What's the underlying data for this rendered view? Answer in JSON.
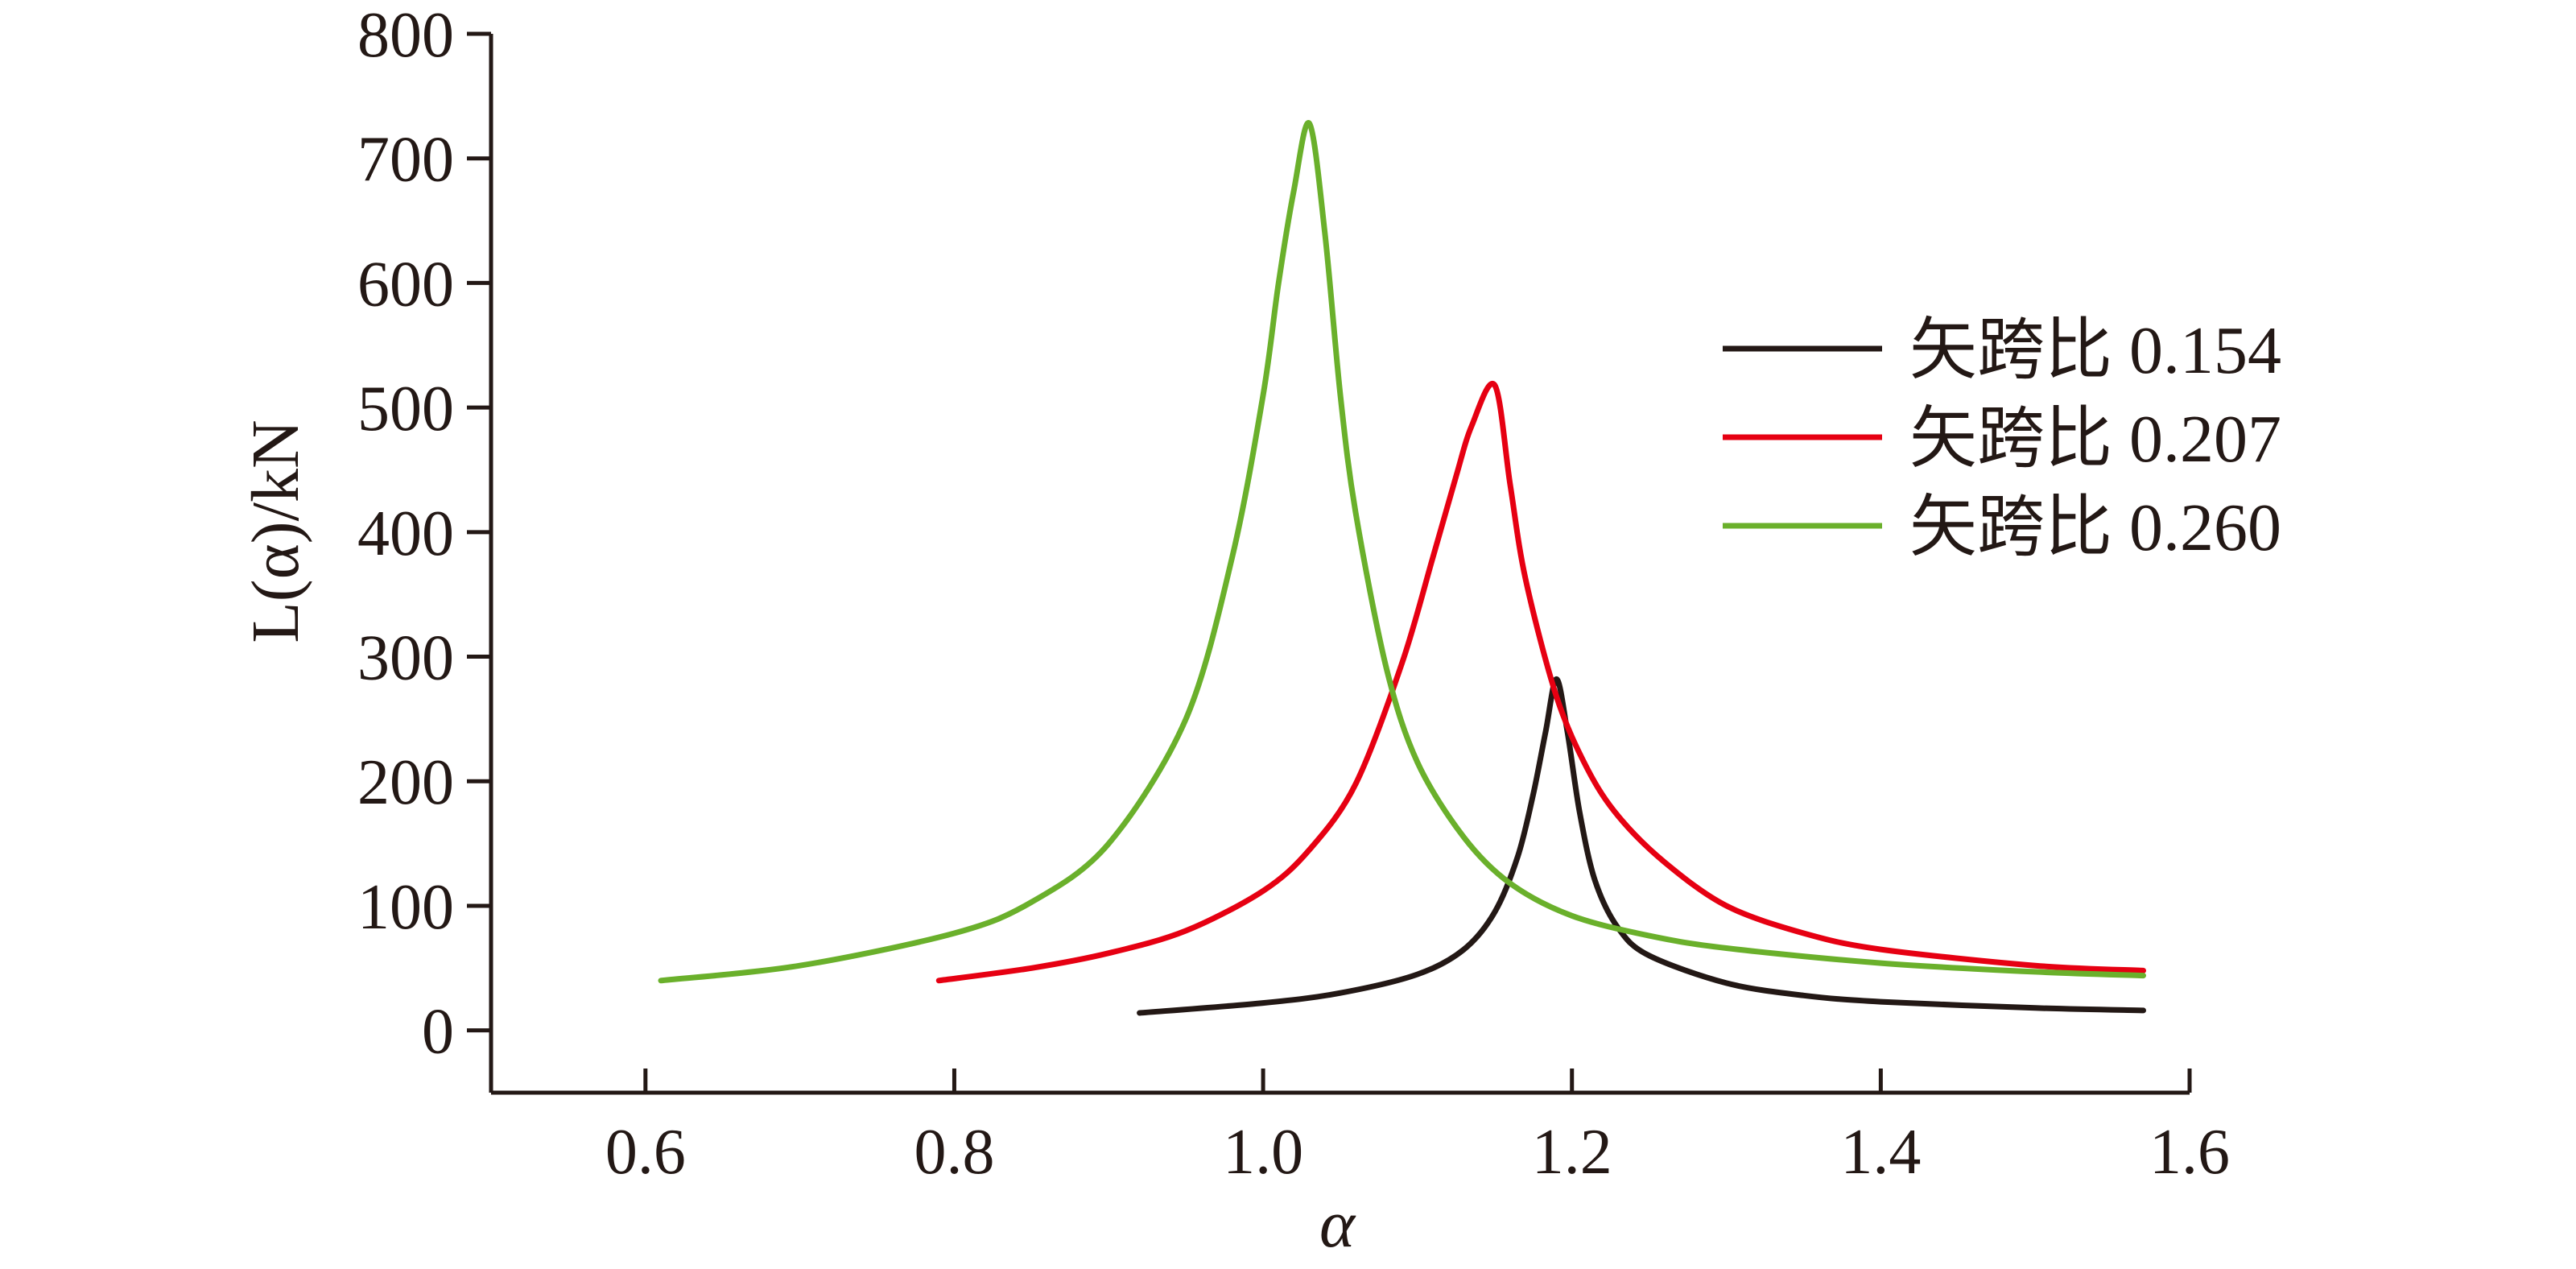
{
  "chart_data": {
    "type": "line",
    "title": "",
    "xlabel": "α",
    "ylabel": "L(α)/kN",
    "xlim": [
      0.5,
      1.6
    ],
    "ylim": [
      -50,
      800
    ],
    "xticks": [
      0.6,
      0.8,
      1.0,
      1.2,
      1.4,
      1.6
    ],
    "xtick_labels": [
      "0.6",
      "0.8",
      "1.0",
      "1.2",
      "1.4",
      "1.6"
    ],
    "yticks": [
      0,
      100,
      200,
      300,
      400,
      500,
      600,
      700,
      800
    ],
    "ytick_labels": [
      "0",
      "100",
      "200",
      "300",
      "400",
      "500",
      "600",
      "700",
      "800"
    ],
    "grid": false,
    "legend_position": "right",
    "series": [
      {
        "name": "矢跨比 0.154",
        "color": "#231815",
        "x": [
          0.92,
          1.0,
          1.05,
          1.1,
          1.13,
          1.15,
          1.165,
          1.175,
          1.183,
          1.19,
          1.197,
          1.205,
          1.215,
          1.23,
          1.25,
          1.3,
          1.35,
          1.4,
          1.5,
          1.57
        ],
        "y": [
          14,
          22,
          30,
          45,
          65,
          95,
          140,
          190,
          240,
          282,
          240,
          175,
          120,
          82,
          60,
          38,
          28,
          23,
          18,
          16
        ]
      },
      {
        "name": "矢跨比 0.207",
        "color": "#e60012",
        "x": [
          0.79,
          0.85,
          0.9,
          0.95,
          1.0,
          1.03,
          1.06,
          1.09,
          1.11,
          1.125,
          1.135,
          1.15,
          1.16,
          1.17,
          1.19,
          1.21,
          1.23,
          1.26,
          1.3,
          1.35,
          1.4,
          1.5,
          1.57
        ],
        "y": [
          40,
          50,
          62,
          80,
          112,
          145,
          198,
          295,
          380,
          445,
          485,
          518,
          438,
          362,
          268,
          210,
          172,
          135,
          100,
          78,
          65,
          52,
          48
        ]
      },
      {
        "name": "矢跨比 0.260",
        "color": "#6ab02b",
        "x": [
          0.61,
          0.7,
          0.8,
          0.85,
          0.9,
          0.95,
          0.98,
          1.0,
          1.01,
          1.02,
          1.03,
          1.04,
          1.05,
          1.06,
          1.08,
          1.1,
          1.13,
          1.16,
          1.2,
          1.25,
          1.3,
          1.4,
          1.5,
          1.57
        ],
        "y": [
          40,
          52,
          78,
          103,
          150,
          250,
          380,
          510,
          600,
          675,
          728,
          640,
          510,
          415,
          290,
          215,
          155,
          118,
          92,
          76,
          66,
          54,
          47,
          44
        ]
      }
    ]
  }
}
